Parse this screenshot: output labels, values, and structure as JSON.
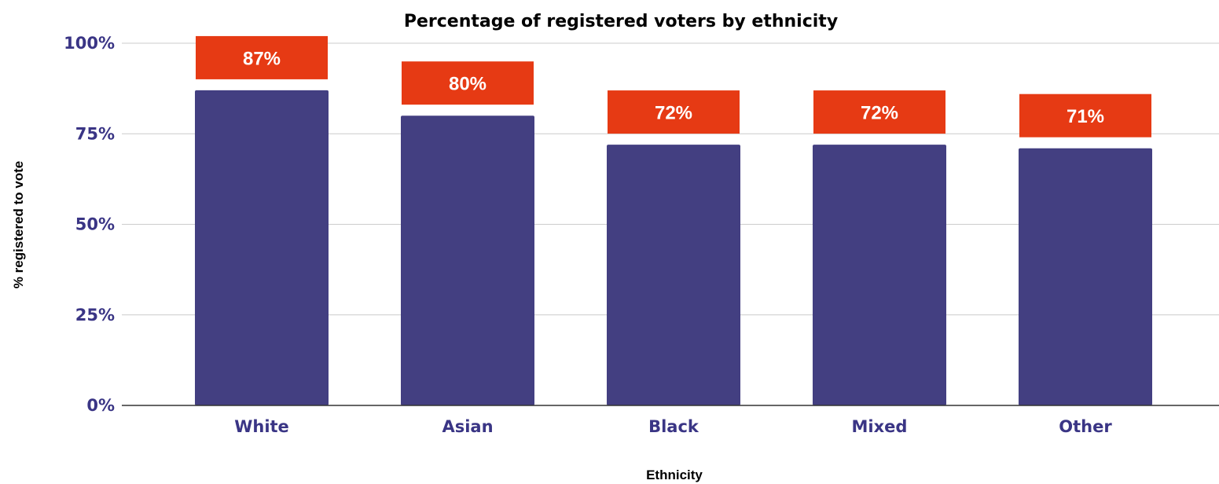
{
  "chart_data": {
    "type": "bar",
    "title": "Percentage of registered voters by ethnicity",
    "xlabel": "Ethnicity",
    "ylabel": "% registered to vote",
    "categories": [
      "White",
      "Asian",
      "Black",
      "Mixed",
      "Other"
    ],
    "values": [
      87,
      80,
      72,
      72,
      71
    ],
    "data_labels": [
      "87%",
      "80%",
      "72%",
      "72%",
      "71%"
    ],
    "ylim": [
      0,
      100
    ],
    "yticks": [
      0,
      25,
      50,
      75,
      100
    ],
    "ytick_labels": [
      "0%",
      "25%",
      "50%",
      "75%",
      "100%"
    ],
    "grid": true,
    "legend": "none",
    "colors": {
      "bar": "#433f81",
      "label_box": "#e63a14",
      "label_text": "#ffffff",
      "tick_text": "#3a3585",
      "grid": "#cccccc",
      "axis_line": "#333333"
    }
  }
}
